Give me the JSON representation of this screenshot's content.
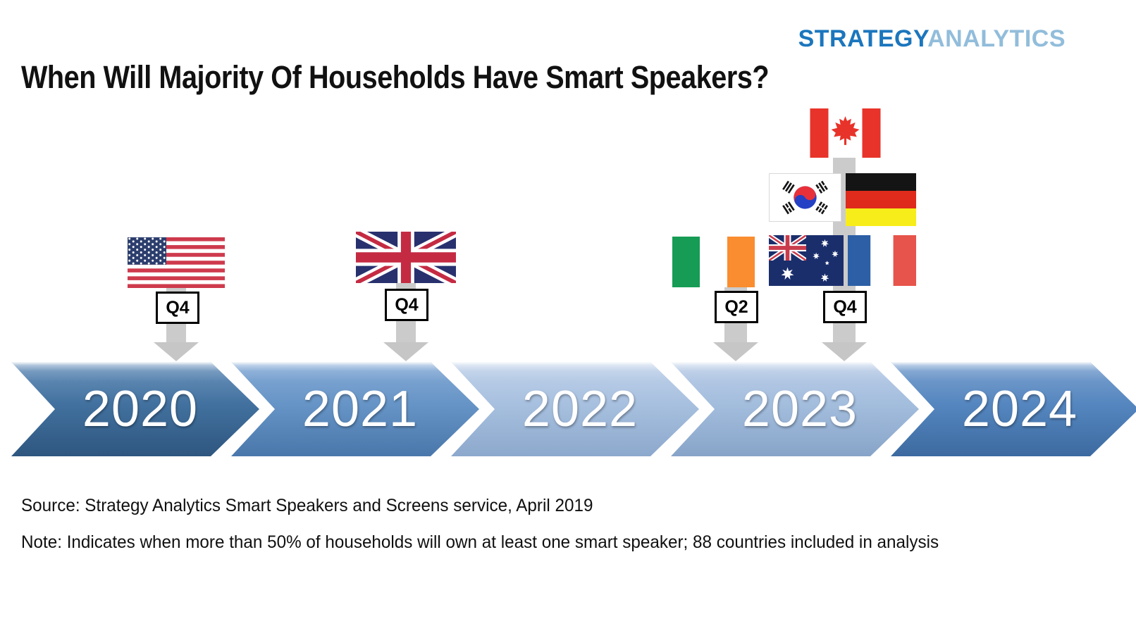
{
  "logo": {
    "strategy": "STRATEGY",
    "analytics": "ANALYTICS",
    "strategy_color": "#1B76BD",
    "analytics_color": "#92BDDB"
  },
  "title": "When Will Majority Of Households Have Smart Speakers?",
  "timeline": {
    "years": [
      {
        "label": "2020",
        "colors": {
          "light": "#6E95BE",
          "base": "#42719F",
          "dark": "#2E567F"
        }
      },
      {
        "label": "2021",
        "colors": {
          "light": "#86ABD6",
          "base": "#6694C6",
          "dark": "#4A77AB"
        }
      },
      {
        "label": "2022",
        "colors": {
          "light": "#C1D2EA",
          "base": "#A7C0DF",
          "dark": "#8CA8CC"
        }
      },
      {
        "label": "2023",
        "colors": {
          "light": "#BCCEE8",
          "base": "#A3BDDD",
          "dark": "#87A4C8"
        }
      },
      {
        "label": "2024",
        "colors": {
          "light": "#7CA2D0",
          "base": "#5586BF",
          "dark": "#3C6AA0"
        }
      }
    ]
  },
  "markers": {
    "us": {
      "country": "United States",
      "quarter": "Q4",
      "year": "2020"
    },
    "uk": {
      "country": "United Kingdom",
      "quarter": "Q4",
      "year": "2021"
    },
    "ireland": {
      "country": "Ireland",
      "quarter": "Q2",
      "year": "2023"
    },
    "group2023": {
      "countries": "Canada, South Korea, Germany, Australia, France",
      "quarter": "Q4",
      "year": "2023"
    }
  },
  "arrow_color": "#C6C6C6",
  "footer": {
    "source": "Source: Strategy Analytics Smart Speakers and Screens service, April 2019",
    "note": "Note: Indicates when more than 50% of households will own at least one smart speaker; 88 countries included in analysis"
  },
  "chart_data": {
    "type": "timeline",
    "title": "When Will Majority Of Households Have Smart Speakers?",
    "categories": [
      "2020",
      "2021",
      "2022",
      "2023",
      "2024"
    ],
    "events": [
      {
        "country": "United States",
        "quarter": "Q4",
        "year": 2020
      },
      {
        "country": "United Kingdom",
        "quarter": "Q4",
        "year": 2021
      },
      {
        "country": "Ireland",
        "quarter": "Q2",
        "year": 2023
      },
      {
        "country": "Canada",
        "quarter": "Q4",
        "year": 2023
      },
      {
        "country": "South Korea",
        "quarter": "Q4",
        "year": 2023
      },
      {
        "country": "Germany",
        "quarter": "Q4",
        "year": 2023
      },
      {
        "country": "Australia",
        "quarter": "Q4",
        "year": 2023
      },
      {
        "country": "France",
        "quarter": "Q4",
        "year": 2023
      }
    ],
    "source": "Strategy Analytics Smart Speakers and Screens service, April 2019",
    "note": "Indicates when more than 50% of households will own at least one smart speaker; 88 countries included in analysis"
  }
}
